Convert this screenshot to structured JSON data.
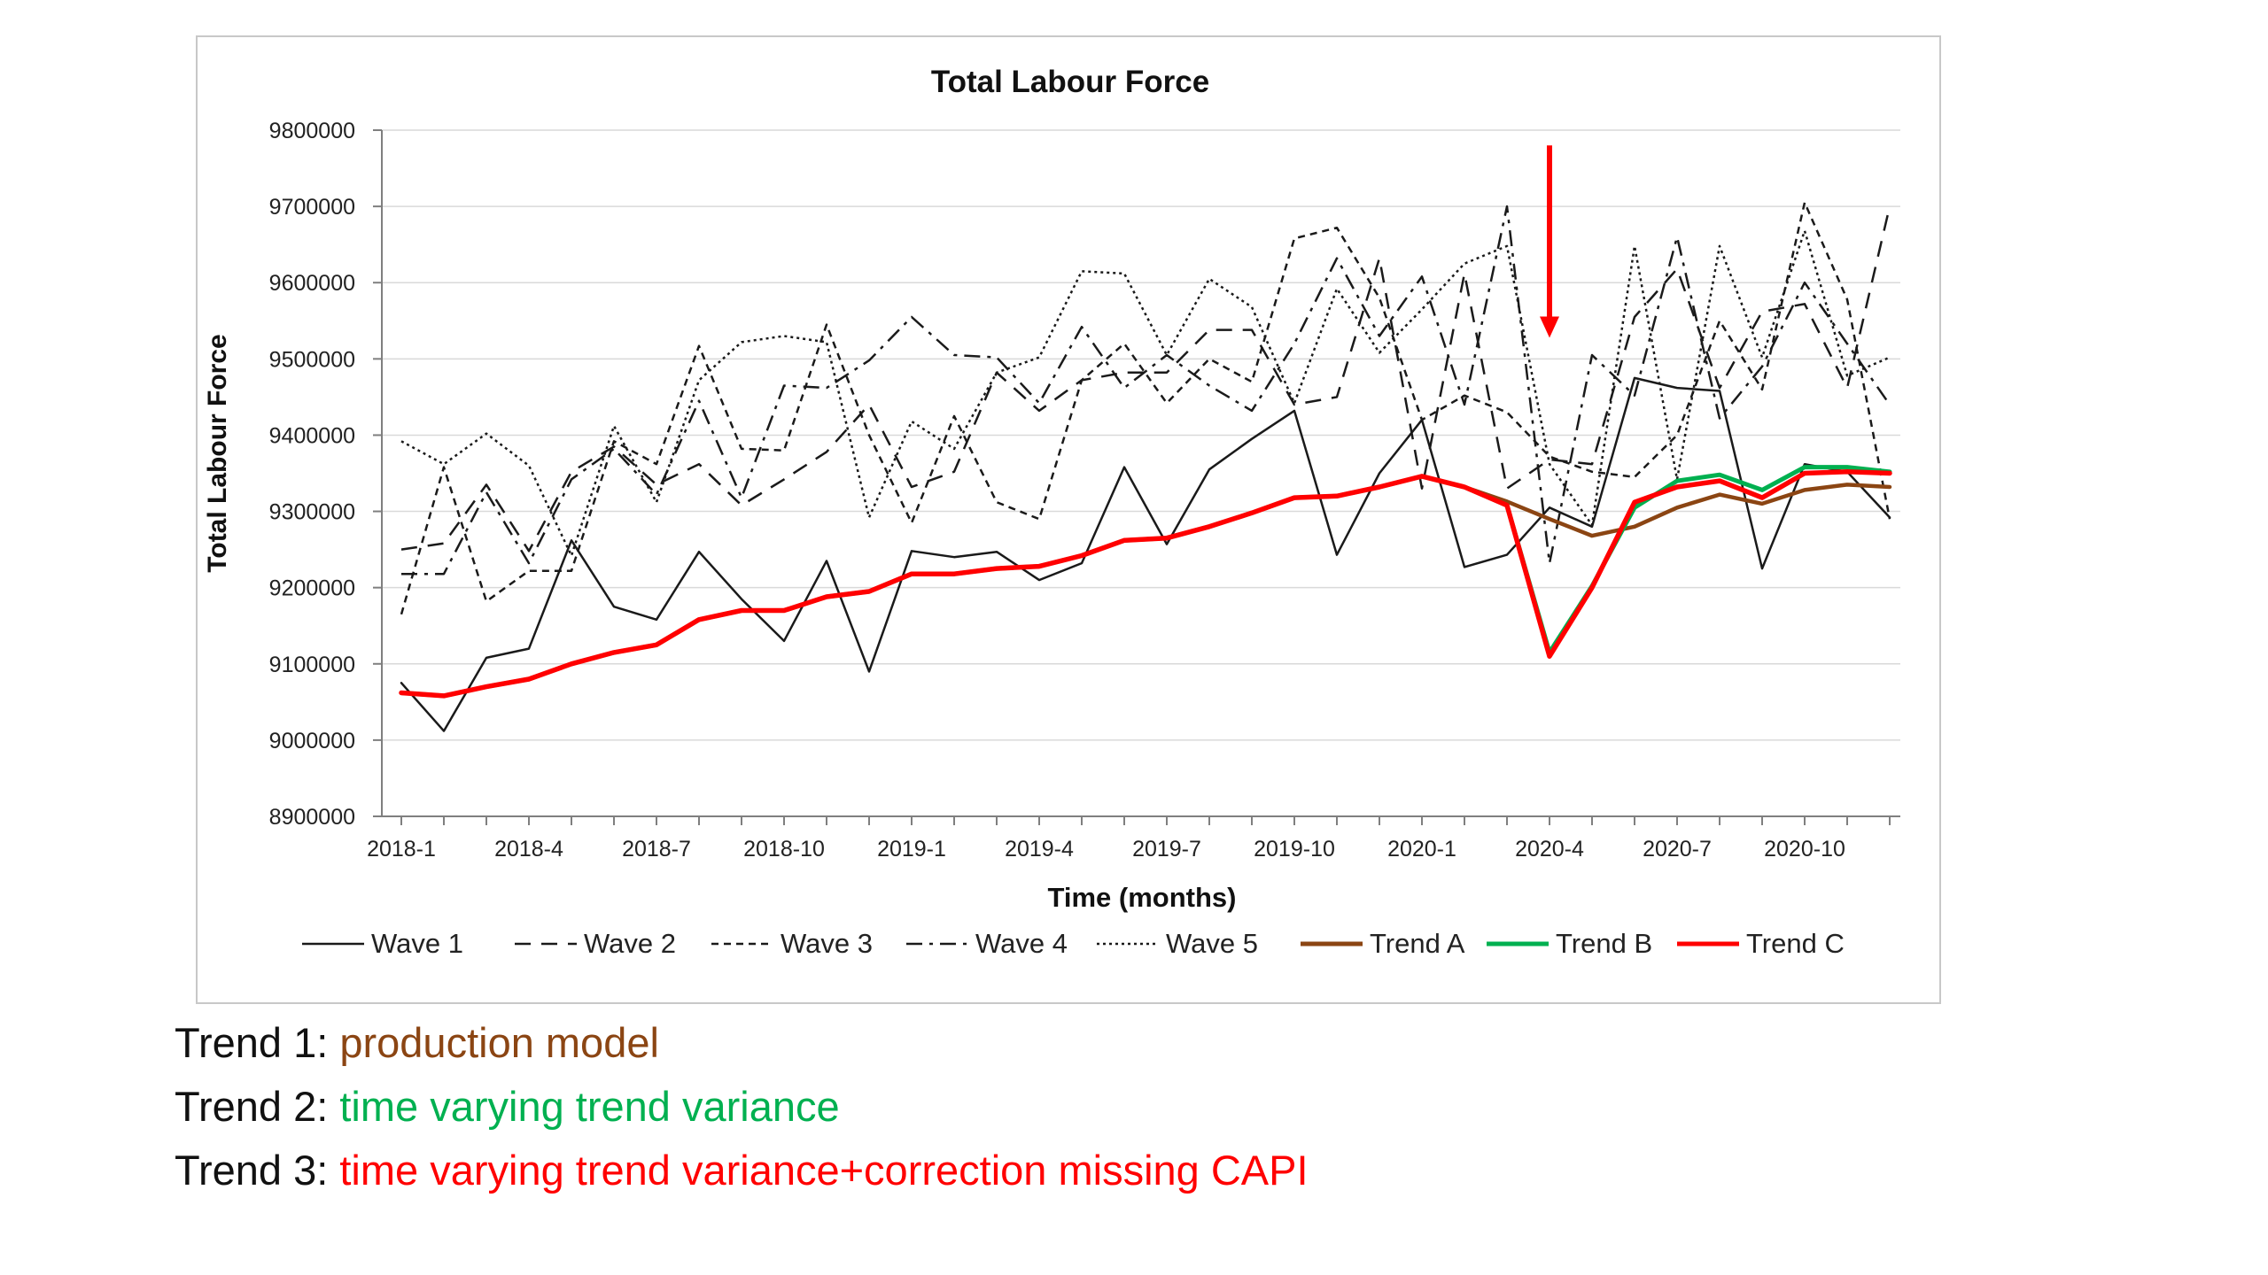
{
  "chart_data": {
    "type": "line",
    "title": "Total Labour Force",
    "xlabel": "Time (months)",
    "ylabel": "Total Labour Force",
    "ylim": [
      8900000,
      9800000
    ],
    "yticks": [
      8900000,
      9000000,
      9100000,
      9200000,
      9300000,
      9400000,
      9500000,
      9600000,
      9700000,
      9800000
    ],
    "ytick_labels": [
      "8900000",
      "9000000",
      "9100000",
      "9200000",
      "9300000",
      "9400000",
      "9500000",
      "9600000",
      "9700000",
      "9800000"
    ],
    "x": [
      "2018-1",
      "2018-2",
      "2018-3",
      "2018-4",
      "2018-5",
      "2018-6",
      "2018-7",
      "2018-8",
      "2018-9",
      "2018-10",
      "2018-11",
      "2018-12",
      "2019-1",
      "2019-2",
      "2019-3",
      "2019-4",
      "2019-5",
      "2019-6",
      "2019-7",
      "2019-8",
      "2019-9",
      "2019-10",
      "2019-11",
      "2019-12",
      "2020-1",
      "2020-2",
      "2020-3",
      "2020-4",
      "2020-5",
      "2020-6",
      "2020-7",
      "2020-8",
      "2020-9",
      "2020-10",
      "2020-11",
      "2020-12"
    ],
    "xtick_labels": [
      "2018-1",
      "2018-4",
      "2018-7",
      "2018-10",
      "2019-1",
      "2019-4",
      "2019-7",
      "2019-10",
      "2020-1",
      "2020-4",
      "2020-7",
      "2020-10"
    ],
    "grid": true,
    "legend_position": "bottom",
    "annotation": {
      "type": "arrow",
      "at_x": "2020-4",
      "from_y": 9780000,
      "to_y": 9530000,
      "color": "#ff0000"
    },
    "series": [
      {
        "name": "Wave 1",
        "color": "#1a1a1a",
        "dash": "solid",
        "width": 2.5,
        "values": [
          9075000,
          9012000,
          9108000,
          9120000,
          9262000,
          9175000,
          9158000,
          9247000,
          9185000,
          9130000,
          9235000,
          9090000,
          9248000,
          9240000,
          9247000,
          9210000,
          9232000,
          9358000,
          9257000,
          9355000,
          9395000,
          9432000,
          9243000,
          9350000,
          9420000,
          9227000,
          9243000,
          9305000,
          9280000,
          9475000,
          9462000,
          9458000,
          9225000,
          9362000,
          9352000,
          9292000
        ]
      },
      {
        "name": "Wave 2",
        "color": "#1a1a1a",
        "dash": "dash",
        "width": 2.5,
        "values": [
          9250000,
          9258000,
          9335000,
          9248000,
          9352000,
          9385000,
          9335000,
          9362000,
          9308000,
          9342000,
          9378000,
          9440000,
          9332000,
          9352000,
          9482000,
          9432000,
          9472000,
          9482000,
          9482000,
          9538000,
          9538000,
          9440000,
          9450000,
          9632000,
          9330000,
          9612000,
          9330000,
          9368000,
          9362000,
          9555000,
          9618000,
          9462000,
          9562000,
          9572000,
          9462000,
          9700000
        ]
      },
      {
        "name": "Wave 3",
        "color": "#1a1a1a",
        "dash": "shortdash",
        "width": 2.5,
        "values": [
          9165000,
          9358000,
          9182000,
          9222000,
          9222000,
          9392000,
          9362000,
          9517000,
          9382000,
          9380000,
          9545000,
          9400000,
          9285000,
          9425000,
          9312000,
          9290000,
          9472000,
          9520000,
          9442000,
          9500000,
          9470000,
          9658000,
          9672000,
          9580000,
          9420000,
          9452000,
          9430000,
          9372000,
          9352000,
          9345000,
          9400000,
          9550000,
          9460000,
          9705000,
          9578000,
          9290000
        ]
      },
      {
        "name": "Wave 4",
        "color": "#1a1a1a",
        "dash": "dashdot",
        "width": 2.5,
        "values": [
          9218000,
          9218000,
          9325000,
          9232000,
          9342000,
          9382000,
          9322000,
          9445000,
          9318000,
          9465000,
          9462000,
          9498000,
          9555000,
          9505000,
          9502000,
          9442000,
          9542000,
          9462000,
          9505000,
          9465000,
          9432000,
          9520000,
          9632000,
          9530000,
          9608000,
          9440000,
          9700000,
          9232000,
          9505000,
          9452000,
          9660000,
          9422000,
          9490000,
          9600000,
          9520000,
          9440000
        ]
      },
      {
        "name": "Wave 5",
        "color": "#1a1a1a",
        "dash": "dot",
        "width": 2.5,
        "values": [
          9392000,
          9362000,
          9402000,
          9360000,
          9242000,
          9412000,
          9312000,
          9472000,
          9522000,
          9530000,
          9522000,
          9292000,
          9418000,
          9382000,
          9482000,
          9502000,
          9615000,
          9612000,
          9505000,
          9605000,
          9568000,
          9442000,
          9592000,
          9508000,
          9565000,
          9625000,
          9648000,
          9362000,
          9282000,
          9648000,
          9342000,
          9648000,
          9502000,
          9668000,
          9478000,
          9502000
        ]
      },
      {
        "name": "Trend A",
        "color": "#8b4513",
        "dash": "solid",
        "width": 4.5,
        "values": [
          9062000,
          9058000,
          9070000,
          9080000,
          9100000,
          9115000,
          9125000,
          9158000,
          9170000,
          9170000,
          9188000,
          9195000,
          9218000,
          9218000,
          9225000,
          9228000,
          9242000,
          9262000,
          9265000,
          9280000,
          9298000,
          9318000,
          9320000,
          9332000,
          9346000,
          9332000,
          9313000,
          9290000,
          9268000,
          9280000,
          9305000,
          9322000,
          9310000,
          9328000,
          9335000,
          9332000
        ]
      },
      {
        "name": "Trend B",
        "color": "#00b050",
        "dash": "solid",
        "width": 5,
        "values": [
          9062000,
          9058000,
          9070000,
          9080000,
          9100000,
          9115000,
          9125000,
          9158000,
          9170000,
          9170000,
          9188000,
          9195000,
          9218000,
          9218000,
          9225000,
          9228000,
          9242000,
          9262000,
          9265000,
          9280000,
          9298000,
          9318000,
          9320000,
          9332000,
          9346000,
          9332000,
          9308000,
          9115000,
          9202000,
          9305000,
          9340000,
          9348000,
          9328000,
          9358000,
          9358000,
          9352000
        ]
      },
      {
        "name": "Trend C",
        "color": "#ff0000",
        "dash": "solid",
        "width": 5.5,
        "values": [
          9062000,
          9058000,
          9070000,
          9080000,
          9100000,
          9115000,
          9125000,
          9158000,
          9170000,
          9170000,
          9188000,
          9195000,
          9218000,
          9218000,
          9225000,
          9228000,
          9242000,
          9262000,
          9265000,
          9280000,
          9298000,
          9318000,
          9320000,
          9332000,
          9346000,
          9332000,
          9308000,
          9110000,
          9200000,
          9312000,
          9332000,
          9340000,
          9318000,
          9350000,
          9352000,
          9350000
        ]
      }
    ]
  },
  "captions": [
    {
      "prefix": "Trend 1: ",
      "text": "production model",
      "color": "#8b4513"
    },
    {
      "prefix": "Trend 2: ",
      "text": "time varying trend variance",
      "color": "#00b050"
    },
    {
      "prefix": "Trend 3: ",
      "text": "time varying trend variance+correction missing CAPI",
      "color": "#ff0000"
    }
  ]
}
